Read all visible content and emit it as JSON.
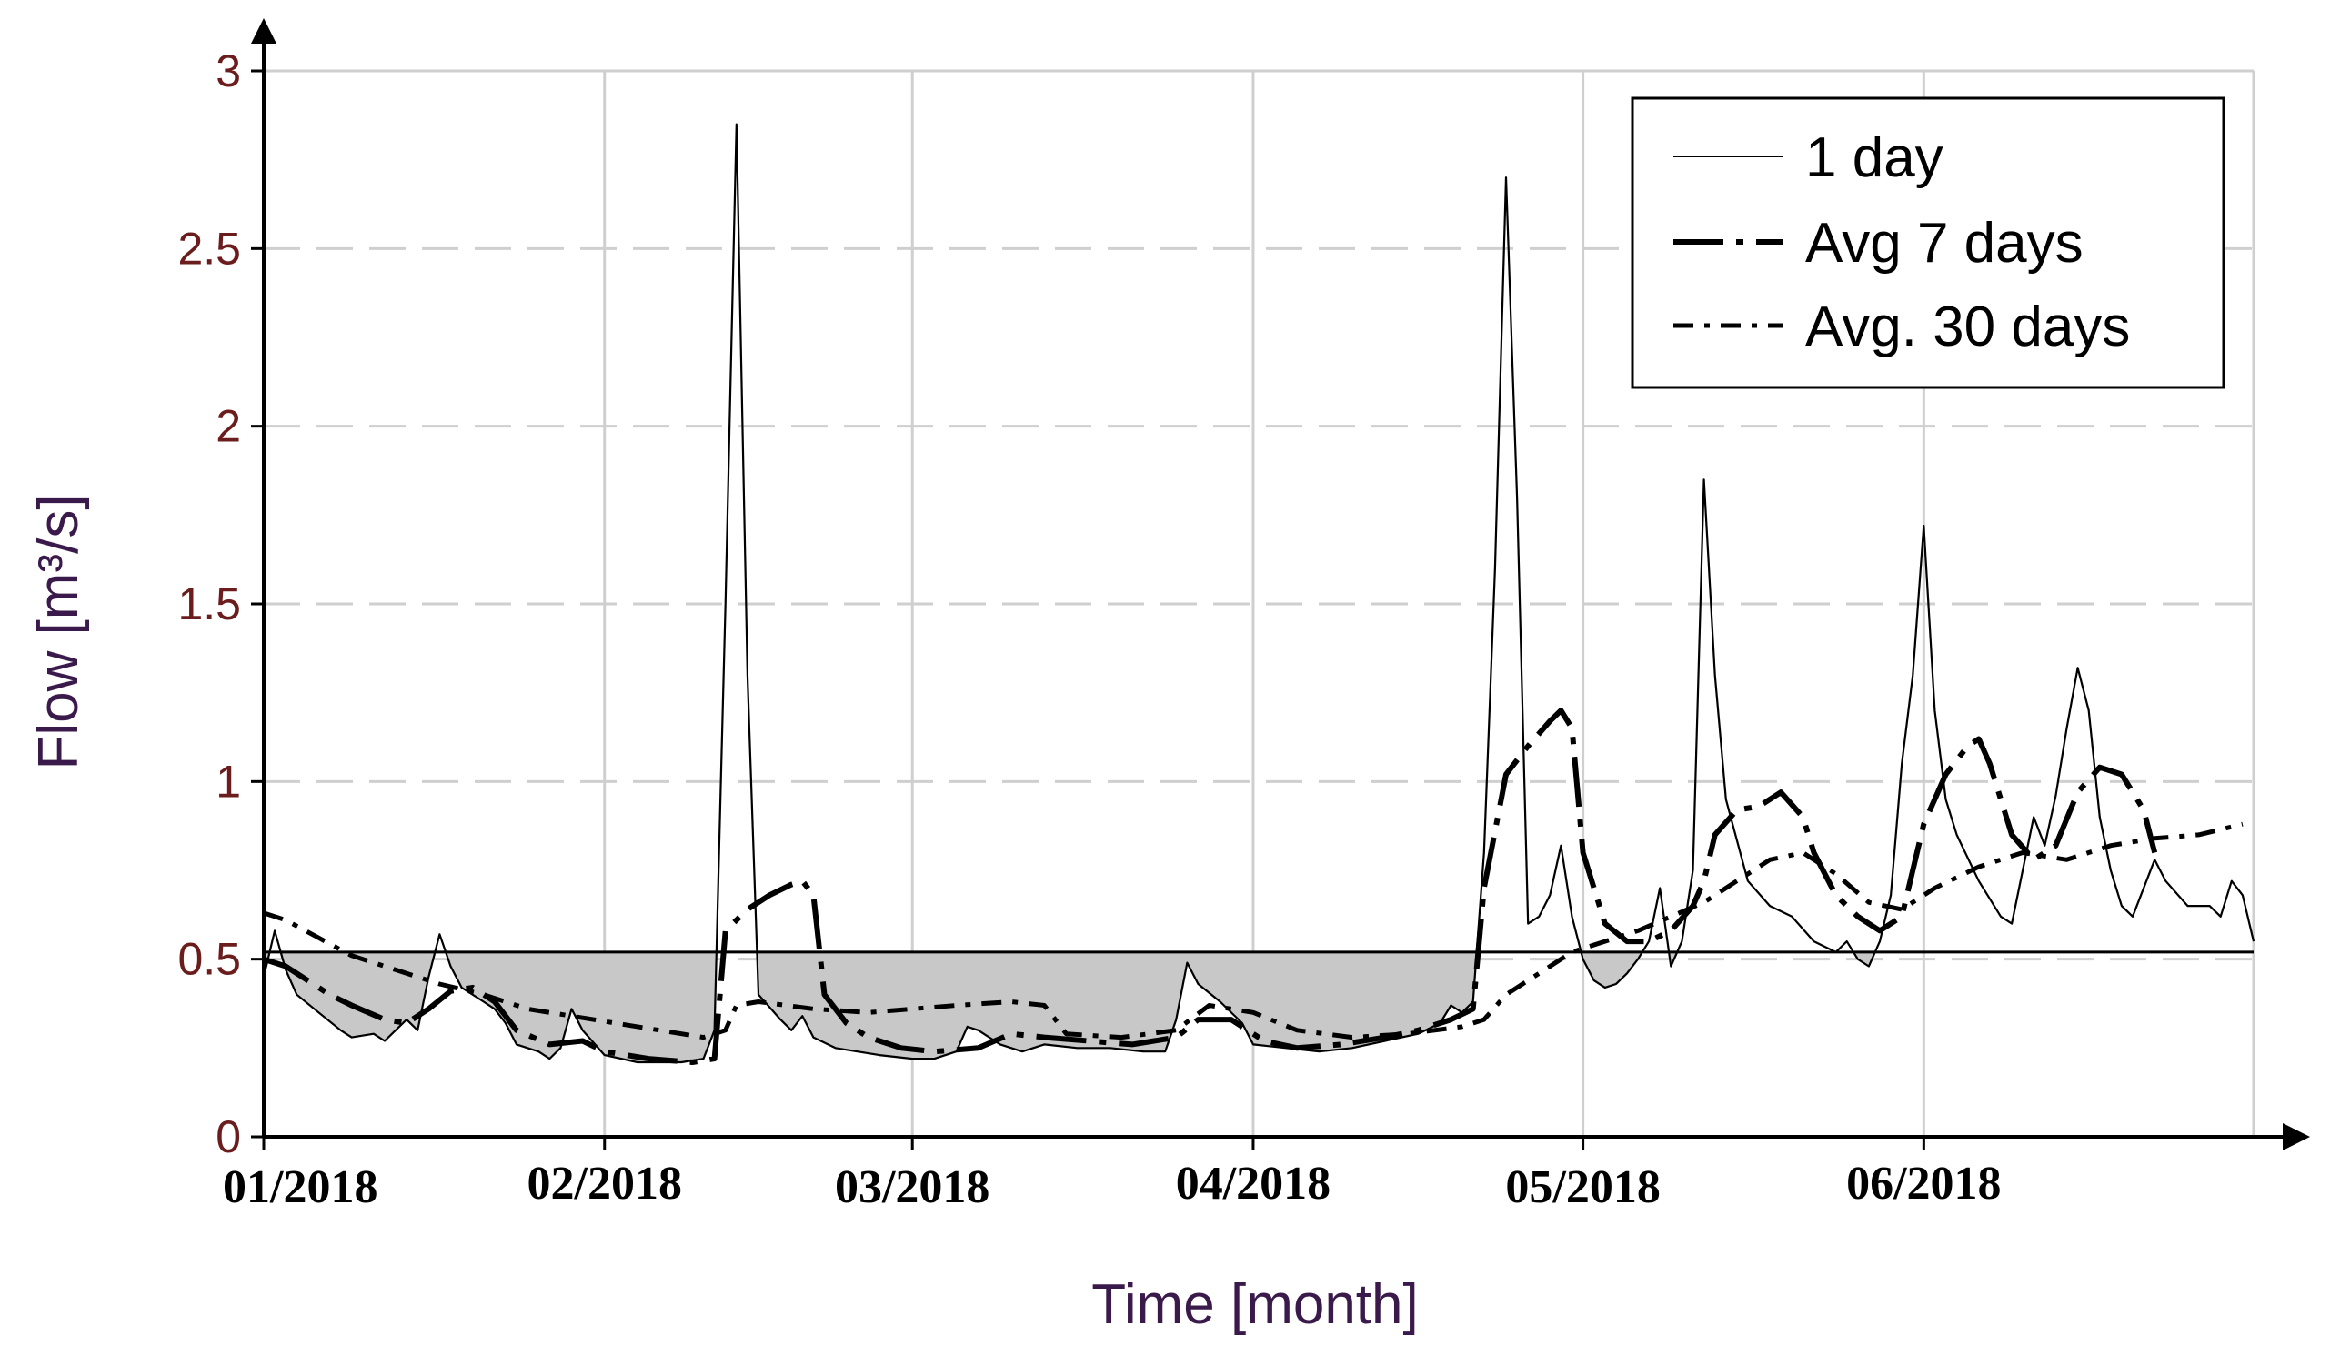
{
  "chart_data": {
    "type": "line",
    "xlabel": "Time [month]",
    "ylabel": "Flow [m³/s]",
    "ylim": [
      0,
      3
    ],
    "xlim": [
      "2018-01-01",
      "2018-07-01"
    ],
    "y_ticks": [
      "0",
      "0.5",
      "1",
      "1.5",
      "2",
      "2.5",
      "3"
    ],
    "x_ticks": [
      {
        "date": "2018-01-01",
        "label": "01/2018"
      },
      {
        "date": "2018-02-01",
        "label": "02/2018"
      },
      {
        "date": "2018-03-01",
        "label": "03/2018"
      },
      {
        "date": "2018-04-01",
        "label": "04/2018"
      },
      {
        "date": "2018-05-01",
        "label": "05/2018"
      },
      {
        "date": "2018-06-01",
        "label": "06/2018"
      }
    ],
    "grid": true,
    "legend_position": "top-right",
    "threshold": 0.52,
    "threshold_shading": "gray fill between threshold and 1-day flow where flow is below threshold",
    "series": [
      {
        "name": "1 day",
        "style": "solid-thin",
        "points": [
          [
            "2018-01-01",
            0.45
          ],
          [
            "2018-01-02",
            0.58
          ],
          [
            "2018-01-03",
            0.47
          ],
          [
            "2018-01-04",
            0.4
          ],
          [
            "2018-01-06",
            0.35
          ],
          [
            "2018-01-08",
            0.3
          ],
          [
            "2018-01-09",
            0.28
          ],
          [
            "2018-01-11",
            0.29
          ],
          [
            "2018-01-12",
            0.27
          ],
          [
            "2018-01-14",
            0.33
          ],
          [
            "2018-01-15",
            0.3
          ],
          [
            "2018-01-16",
            0.45
          ],
          [
            "2018-01-17",
            0.57
          ],
          [
            "2018-01-18",
            0.48
          ],
          [
            "2018-01-19",
            0.42
          ],
          [
            "2018-01-21",
            0.38
          ],
          [
            "2018-01-22",
            0.36
          ],
          [
            "2018-01-23",
            0.32
          ],
          [
            "2018-01-24",
            0.26
          ],
          [
            "2018-01-26",
            0.24
          ],
          [
            "2018-01-27",
            0.22
          ],
          [
            "2018-01-28",
            0.25
          ],
          [
            "2018-01-29",
            0.36
          ],
          [
            "2018-01-30",
            0.3
          ],
          [
            "2018-02-01",
            0.23
          ],
          [
            "2018-02-04",
            0.21
          ],
          [
            "2018-02-08",
            0.21
          ],
          [
            "2018-02-10",
            0.22
          ],
          [
            "2018-02-11",
            0.3
          ],
          [
            "2018-02-12",
            1.5
          ],
          [
            "2018-02-13",
            2.85
          ],
          [
            "2018-02-14",
            1.3
          ],
          [
            "2018-02-15",
            0.4
          ],
          [
            "2018-02-17",
            0.33
          ],
          [
            "2018-02-18",
            0.3
          ],
          [
            "2018-02-19",
            0.34
          ],
          [
            "2018-02-20",
            0.28
          ],
          [
            "2018-02-22",
            0.25
          ],
          [
            "2018-02-24",
            0.24
          ],
          [
            "2018-02-26",
            0.23
          ],
          [
            "2018-03-01",
            0.22
          ],
          [
            "2018-03-03",
            0.22
          ],
          [
            "2018-03-05",
            0.24
          ],
          [
            "2018-03-06",
            0.31
          ],
          [
            "2018-03-07",
            0.3
          ],
          [
            "2018-03-09",
            0.26
          ],
          [
            "2018-03-11",
            0.24
          ],
          [
            "2018-03-13",
            0.26
          ],
          [
            "2018-03-16",
            0.25
          ],
          [
            "2018-03-19",
            0.25
          ],
          [
            "2018-03-22",
            0.24
          ],
          [
            "2018-03-24",
            0.24
          ],
          [
            "2018-03-25",
            0.33
          ],
          [
            "2018-03-26",
            0.49
          ],
          [
            "2018-03-27",
            0.43
          ],
          [
            "2018-03-29",
            0.38
          ],
          [
            "2018-03-31",
            0.32
          ],
          [
            "2018-04-01",
            0.26
          ],
          [
            "2018-04-04",
            0.25
          ],
          [
            "2018-04-07",
            0.24
          ],
          [
            "2018-04-10",
            0.25
          ],
          [
            "2018-04-13",
            0.27
          ],
          [
            "2018-04-16",
            0.29
          ],
          [
            "2018-04-18",
            0.32
          ],
          [
            "2018-04-19",
            0.37
          ],
          [
            "2018-04-20",
            0.35
          ],
          [
            "2018-04-21",
            0.38
          ],
          [
            "2018-04-22",
            0.8
          ],
          [
            "2018-04-23",
            1.6
          ],
          [
            "2018-04-24",
            2.7
          ],
          [
            "2018-04-25",
            1.8
          ],
          [
            "2018-04-26",
            0.6
          ],
          [
            "2018-04-27",
            0.62
          ],
          [
            "2018-04-28",
            0.68
          ],
          [
            "2018-04-29",
            0.82
          ],
          [
            "2018-04-30",
            0.62
          ],
          [
            "2018-05-01",
            0.5
          ],
          [
            "2018-05-02",
            0.44
          ],
          [
            "2018-05-03",
            0.42
          ],
          [
            "2018-05-04",
            0.43
          ],
          [
            "2018-05-05",
            0.46
          ],
          [
            "2018-05-06",
            0.5
          ],
          [
            "2018-05-07",
            0.55
          ],
          [
            "2018-05-08",
            0.7
          ],
          [
            "2018-05-09",
            0.48
          ],
          [
            "2018-05-10",
            0.55
          ],
          [
            "2018-05-11",
            0.75
          ],
          [
            "2018-05-12",
            1.85
          ],
          [
            "2018-05-13",
            1.3
          ],
          [
            "2018-05-14",
            0.95
          ],
          [
            "2018-05-16",
            0.72
          ],
          [
            "2018-05-18",
            0.65
          ],
          [
            "2018-05-20",
            0.62
          ],
          [
            "2018-05-22",
            0.55
          ],
          [
            "2018-05-24",
            0.52
          ],
          [
            "2018-05-25",
            0.55
          ],
          [
            "2018-05-26",
            0.5
          ],
          [
            "2018-05-27",
            0.48
          ],
          [
            "2018-05-28",
            0.55
          ],
          [
            "2018-05-29",
            0.68
          ],
          [
            "2018-05-30",
            1.05
          ],
          [
            "2018-05-31",
            1.3
          ],
          [
            "2018-06-01",
            1.72
          ],
          [
            "2018-06-02",
            1.2
          ],
          [
            "2018-06-03",
            0.95
          ],
          [
            "2018-06-04",
            0.85
          ],
          [
            "2018-06-06",
            0.72
          ],
          [
            "2018-06-08",
            0.62
          ],
          [
            "2018-06-09",
            0.6
          ],
          [
            "2018-06-10",
            0.75
          ],
          [
            "2018-06-11",
            0.9
          ],
          [
            "2018-06-12",
            0.82
          ],
          [
            "2018-06-13",
            0.96
          ],
          [
            "2018-06-14",
            1.15
          ],
          [
            "2018-06-15",
            1.32
          ],
          [
            "2018-06-16",
            1.2
          ],
          [
            "2018-06-17",
            0.9
          ],
          [
            "2018-06-18",
            0.75
          ],
          [
            "2018-06-19",
            0.65
          ],
          [
            "2018-06-20",
            0.62
          ],
          [
            "2018-06-22",
            0.78
          ],
          [
            "2018-06-23",
            0.72
          ],
          [
            "2018-06-25",
            0.65
          ],
          [
            "2018-06-27",
            0.65
          ],
          [
            "2018-06-28",
            0.62
          ],
          [
            "2018-06-29",
            0.72
          ],
          [
            "2018-06-30",
            0.68
          ],
          [
            "2018-07-01",
            0.55
          ]
        ]
      },
      {
        "name": "Avg 7 days",
        "style": "long-dash-thick",
        "points": [
          [
            "2018-01-01",
            0.5
          ],
          [
            "2018-01-03",
            0.48
          ],
          [
            "2018-01-05",
            0.44
          ],
          [
            "2018-01-07",
            0.4
          ],
          [
            "2018-01-09",
            0.37
          ],
          [
            "2018-01-12",
            0.33
          ],
          [
            "2018-01-14",
            0.32
          ],
          [
            "2018-01-16",
            0.36
          ],
          [
            "2018-01-18",
            0.41
          ],
          [
            "2018-01-20",
            0.42
          ],
          [
            "2018-01-22",
            0.38
          ],
          [
            "2018-01-24",
            0.3
          ],
          [
            "2018-01-27",
            0.26
          ],
          [
            "2018-01-30",
            0.27
          ],
          [
            "2018-02-01",
            0.24
          ],
          [
            "2018-02-05",
            0.22
          ],
          [
            "2018-02-09",
            0.21
          ],
          [
            "2018-02-11",
            0.22
          ],
          [
            "2018-02-12",
            0.58
          ],
          [
            "2018-02-14",
            0.64
          ],
          [
            "2018-02-16",
            0.68
          ],
          [
            "2018-02-18",
            0.71
          ],
          [
            "2018-02-19",
            0.72
          ],
          [
            "2018-02-20",
            0.68
          ],
          [
            "2018-02-21",
            0.4
          ],
          [
            "2018-02-23",
            0.32
          ],
          [
            "2018-02-25",
            0.28
          ],
          [
            "2018-02-28",
            0.25
          ],
          [
            "2018-03-03",
            0.24
          ],
          [
            "2018-03-07",
            0.25
          ],
          [
            "2018-03-10",
            0.29
          ],
          [
            "2018-03-13",
            0.28
          ],
          [
            "2018-03-17",
            0.27
          ],
          [
            "2018-03-21",
            0.26
          ],
          [
            "2018-03-25",
            0.28
          ],
          [
            "2018-03-27",
            0.33
          ],
          [
            "2018-03-30",
            0.33
          ],
          [
            "2018-04-02",
            0.27
          ],
          [
            "2018-04-05",
            0.25
          ],
          [
            "2018-04-09",
            0.26
          ],
          [
            "2018-04-13",
            0.28
          ],
          [
            "2018-04-16",
            0.3
          ],
          [
            "2018-04-19",
            0.33
          ],
          [
            "2018-04-21",
            0.36
          ],
          [
            "2018-04-22",
            0.7
          ],
          [
            "2018-04-24",
            1.02
          ],
          [
            "2018-04-26",
            1.1
          ],
          [
            "2018-04-28",
            1.17
          ],
          [
            "2018-04-29",
            1.2
          ],
          [
            "2018-04-30",
            1.15
          ],
          [
            "2018-05-01",
            0.8
          ],
          [
            "2018-05-03",
            0.6
          ],
          [
            "2018-05-05",
            0.55
          ],
          [
            "2018-05-07",
            0.55
          ],
          [
            "2018-05-09",
            0.58
          ],
          [
            "2018-05-11",
            0.65
          ],
          [
            "2018-05-12",
            0.72
          ],
          [
            "2018-05-13",
            0.85
          ],
          [
            "2018-05-15",
            0.92
          ],
          [
            "2018-05-17",
            0.93
          ],
          [
            "2018-05-19",
            0.97
          ],
          [
            "2018-05-21",
            0.9
          ],
          [
            "2018-05-22",
            0.8
          ],
          [
            "2018-05-24",
            0.68
          ],
          [
            "2018-05-26",
            0.62
          ],
          [
            "2018-05-28",
            0.58
          ],
          [
            "2018-05-30",
            0.62
          ],
          [
            "2018-06-01",
            0.88
          ],
          [
            "2018-06-03",
            1.02
          ],
          [
            "2018-06-05",
            1.1
          ],
          [
            "2018-06-06",
            1.12
          ],
          [
            "2018-06-07",
            1.05
          ],
          [
            "2018-06-09",
            0.85
          ],
          [
            "2018-06-11",
            0.78
          ],
          [
            "2018-06-13",
            0.82
          ],
          [
            "2018-06-15",
            0.97
          ],
          [
            "2018-06-17",
            1.04
          ],
          [
            "2018-06-19",
            1.02
          ],
          [
            "2018-06-21",
            0.92
          ],
          [
            "2018-06-22",
            0.8
          ]
        ]
      },
      {
        "name": "Avg. 30 days",
        "style": "dash-dot",
        "points": [
          [
            "2018-01-01",
            0.63
          ],
          [
            "2018-01-03",
            0.61
          ],
          [
            "2018-01-06",
            0.56
          ],
          [
            "2018-01-09",
            0.51
          ],
          [
            "2018-01-13",
            0.47
          ],
          [
            "2018-01-17",
            0.43
          ],
          [
            "2018-01-21",
            0.4
          ],
          [
            "2018-01-25",
            0.36
          ],
          [
            "2018-01-29",
            0.34
          ],
          [
            "2018-02-02",
            0.32
          ],
          [
            "2018-02-06",
            0.3
          ],
          [
            "2018-02-10",
            0.28
          ],
          [
            "2018-02-12",
            0.3
          ],
          [
            "2018-02-13",
            0.37
          ],
          [
            "2018-02-15",
            0.38
          ],
          [
            "2018-02-20",
            0.36
          ],
          [
            "2018-02-25",
            0.35
          ],
          [
            "2018-03-01",
            0.36
          ],
          [
            "2018-03-05",
            0.37
          ],
          [
            "2018-03-10",
            0.38
          ],
          [
            "2018-03-13",
            0.37
          ],
          [
            "2018-03-15",
            0.29
          ],
          [
            "2018-03-20",
            0.28
          ],
          [
            "2018-03-25",
            0.3
          ],
          [
            "2018-03-28",
            0.37
          ],
          [
            "2018-04-01",
            0.35
          ],
          [
            "2018-04-05",
            0.3
          ],
          [
            "2018-04-10",
            0.28
          ],
          [
            "2018-04-15",
            0.29
          ],
          [
            "2018-04-20",
            0.31
          ],
          [
            "2018-04-22",
            0.33
          ],
          [
            "2018-04-24",
            0.4
          ],
          [
            "2018-04-27",
            0.46
          ],
          [
            "2018-04-30",
            0.52
          ],
          [
            "2018-05-03",
            0.55
          ],
          [
            "2018-05-06",
            0.58
          ],
          [
            "2018-05-09",
            0.62
          ],
          [
            "2018-05-12",
            0.66
          ],
          [
            "2018-05-15",
            0.72
          ],
          [
            "2018-05-18",
            0.78
          ],
          [
            "2018-05-21",
            0.8
          ],
          [
            "2018-05-24",
            0.74
          ],
          [
            "2018-05-27",
            0.66
          ],
          [
            "2018-05-30",
            0.64
          ],
          [
            "2018-06-02",
            0.7
          ],
          [
            "2018-06-06",
            0.76
          ],
          [
            "2018-06-10",
            0.8
          ],
          [
            "2018-06-14",
            0.78
          ],
          [
            "2018-06-18",
            0.82
          ],
          [
            "2018-06-22",
            0.84
          ],
          [
            "2018-06-26",
            0.85
          ],
          [
            "2018-06-30",
            0.88
          ]
        ]
      }
    ]
  }
}
